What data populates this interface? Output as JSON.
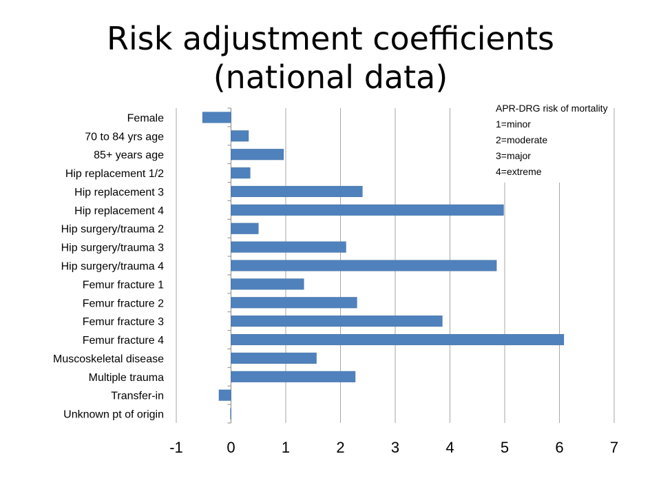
{
  "title": {
    "line1": "Risk adjustment coefficients",
    "line2": "(national data)"
  },
  "note": {
    "heading": "APR-DRG risk of mortality",
    "lines": [
      "1=minor",
      "2=moderate",
      "3=major",
      "4=extreme"
    ]
  },
  "chart_data": {
    "type": "bar",
    "orientation": "horizontal",
    "categories": [
      "Female",
      "70 to 84 yrs age",
      "85+ years age",
      "Hip replacement 1/2",
      "Hip replacement 3",
      "Hip replacement 4",
      "Hip surgery/trauma 2",
      "Hip surgery/trauma 3",
      "Hip surgery/trauma 4",
      "Femur fracture 1",
      "Femur fracture 2",
      "Femur fracture 3",
      "Femur fracture 4",
      "Muscoskeletal disease",
      "Multiple trauma",
      "Transfer-in",
      "Unknown pt of origin"
    ],
    "values": [
      -0.52,
      0.32,
      0.96,
      0.35,
      2.4,
      4.98,
      0.5,
      2.1,
      4.85,
      1.33,
      2.3,
      3.86,
      6.08,
      1.56,
      2.27,
      -0.22,
      -0.01
    ],
    "xlim": [
      -1,
      7
    ],
    "xticks": [
      "-1",
      "0",
      "1",
      "2",
      "3",
      "4",
      "5",
      "6",
      "7"
    ],
    "grid": "vertical",
    "bar_color": "#4F81BD"
  }
}
